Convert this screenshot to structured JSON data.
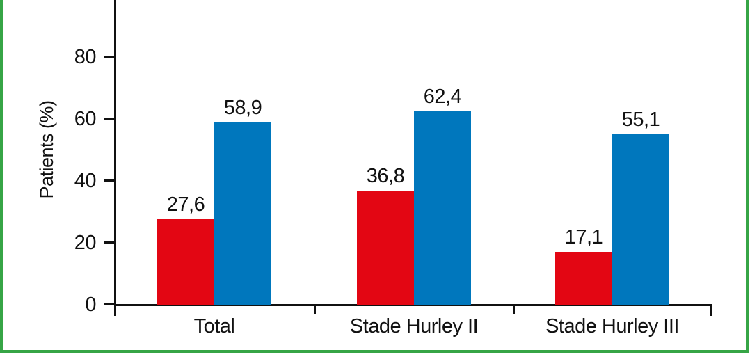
{
  "frame": {
    "border_color": "#36a546"
  },
  "chart_data": {
    "type": "bar",
    "title": "",
    "categories": [
      "Total",
      "Stade Hurley II",
      "Stade Hurley III"
    ],
    "series": [
      {
        "name": "red-series",
        "color": "#e30613",
        "values": [
          27.6,
          36.8,
          17.1
        ],
        "value_labels": [
          "27,6",
          "36,8",
          "17,1"
        ]
      },
      {
        "name": "blue-series",
        "color": "#0077bd",
        "values": [
          58.9,
          62.4,
          55.1
        ],
        "value_labels": [
          "58,9",
          "62,4",
          "55,1"
        ]
      }
    ],
    "xlabel": "",
    "ylabel": "Patients (%)",
    "ytick_labels": [
      "0",
      "20",
      "40",
      "60",
      "80"
    ],
    "ytick_values": [
      0,
      20,
      40,
      60,
      80
    ],
    "ylim": [
      0,
      98
    ],
    "grid": false,
    "legend": "none",
    "decimal_separator": ",",
    "axis_color": "#111111",
    "text_color": "#111111"
  }
}
